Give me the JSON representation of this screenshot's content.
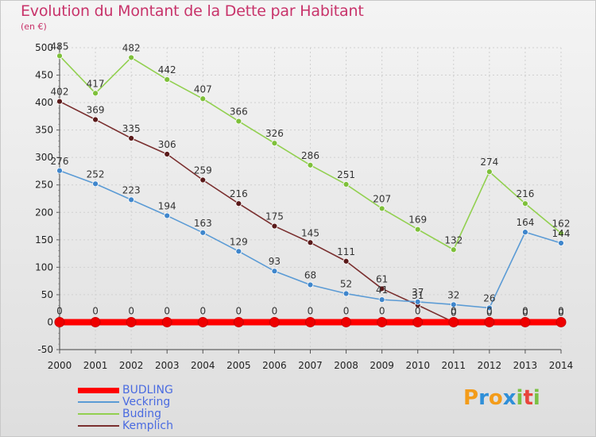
{
  "header": {
    "title": "Evolution du Montant de la Dette par Habitant",
    "subtitle": "(en €)"
  },
  "logo": {
    "letters": [
      "P",
      "r",
      "o",
      "x",
      "i",
      "t",
      "i"
    ],
    "colors": [
      "#f39c1a",
      "#2f8fd8",
      "#f39c1a",
      "#2f8fd8",
      "#7bc144",
      "#e8453c",
      "#7bc144"
    ]
  },
  "chart_data": {
    "type": "line",
    "title": "Evolution du Montant de la Dette par Habitant",
    "ylabel": "(en €)",
    "xlabel": "",
    "x": [
      "2000",
      "2001",
      "2002",
      "2003",
      "2004",
      "2005",
      "2006",
      "2007",
      "2008",
      "2009",
      "2010",
      "2011",
      "2012",
      "2013",
      "2014"
    ],
    "ylim": [
      -50,
      500
    ],
    "yticks": [
      "-50",
      "0",
      "50",
      "100",
      "150",
      "200",
      "250",
      "300",
      "350",
      "400",
      "450",
      "500"
    ],
    "series": [
      {
        "name": "BUDLING",
        "color": "#ff0000",
        "values": [
          0,
          0,
          0,
          0,
          0,
          0,
          0,
          0,
          0,
          0,
          0,
          0,
          0,
          0,
          0
        ],
        "labels": [
          "0",
          "0",
          "0",
          "0",
          "0",
          "0",
          "0",
          "0",
          "0",
          "0",
          "0",
          "0",
          "0",
          "0",
          "0"
        ]
      },
      {
        "name": "Veckring",
        "color": "#5b9bd5",
        "dot": "#3f86cc",
        "values": [
          276,
          252,
          223,
          194,
          163,
          129,
          93,
          68,
          52,
          41,
          37,
          32,
          26,
          164,
          144
        ],
        "labels": [
          "276",
          "252",
          "223",
          "194",
          "163",
          "129",
          "93",
          "68",
          "52",
          "41",
          "37",
          "32",
          "26",
          "164",
          "144"
        ]
      },
      {
        "name": "Buding",
        "color": "#92d050",
        "dot": "#7ec03a",
        "values": [
          485,
          417,
          482,
          442,
          407,
          366,
          326,
          286,
          251,
          207,
          169,
          132,
          274,
          216,
          162
        ],
        "labels": [
          "485",
          "417",
          "482",
          "442",
          "407",
          "366",
          "326",
          "286",
          "251",
          "207",
          "169",
          "132",
          "274",
          "216",
          "162"
        ]
      },
      {
        "name": "Kemplich",
        "color": "#7a2f2f",
        "dot": "#5a1a1a",
        "values": [
          402,
          369,
          335,
          306,
          259,
          216,
          175,
          145,
          111,
          61,
          31,
          0,
          0,
          0,
          0
        ],
        "labels": [
          "402",
          "369",
          "335",
          "306",
          "259",
          "216",
          "175",
          "145",
          "111",
          "61",
          "31",
          "0",
          "0",
          "0",
          "0"
        ]
      }
    ]
  }
}
